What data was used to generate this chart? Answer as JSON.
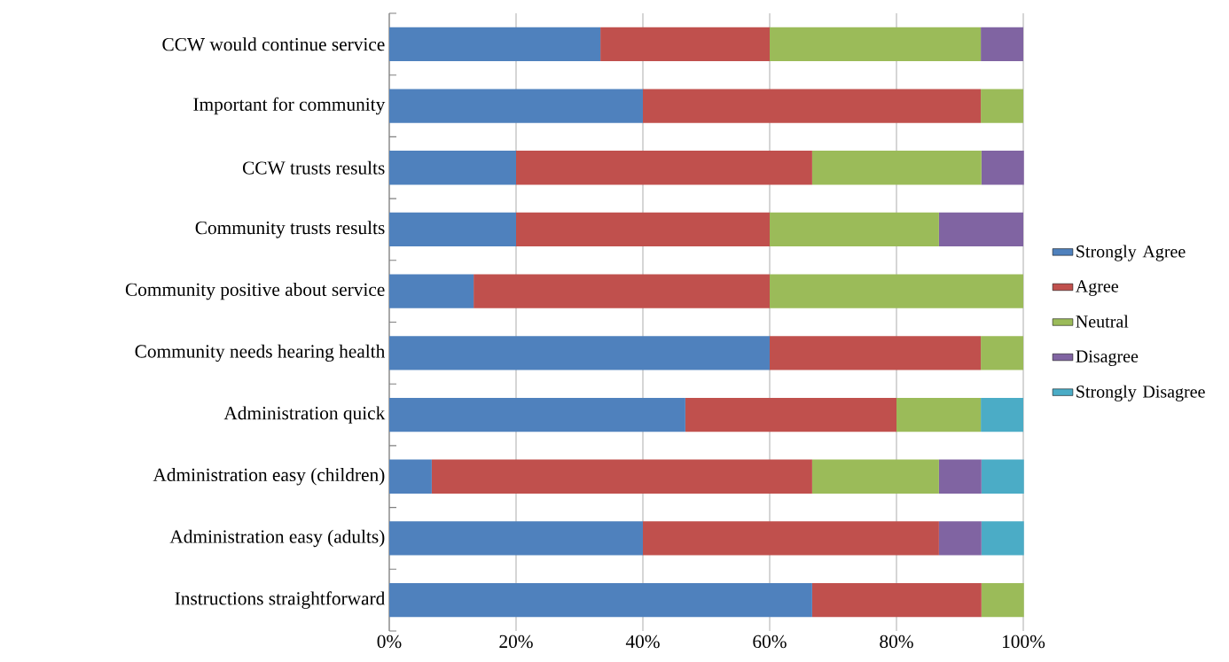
{
  "chart_data": {
    "type": "bar",
    "orientation": "horizontal",
    "stacked": true,
    "categories": [
      "CCW would continue service",
      "Important for community",
      "CCW trusts results",
      "Community trusts results",
      "Community positive about service",
      "Community needs hearing health",
      "Administration quick",
      "Administration easy (children)",
      "Administration easy (adults)",
      "Instructions straightforward"
    ],
    "series": [
      {
        "name": "Strongly Agree",
        "color": "#4f81bd",
        "values": [
          33.3,
          40,
          20,
          20,
          13.3,
          60,
          46.7,
          6.7,
          40,
          66.7
        ]
      },
      {
        "name": "Agree",
        "color": "#c0504d",
        "values": [
          26.7,
          53.3,
          46.7,
          40,
          46.7,
          33.3,
          33.3,
          60,
          46.7,
          26.7
        ]
      },
      {
        "name": "Neutral",
        "color": "#9bbb59",
        "values": [
          33.3,
          6.7,
          26.7,
          26.7,
          40,
          6.7,
          13.3,
          20,
          null,
          6.7
        ]
      },
      {
        "name": "Disagree",
        "color": "#8064a2",
        "values": [
          6.7,
          null,
          6.7,
          13.3,
          null,
          null,
          null,
          6.7,
          6.7,
          null
        ]
      },
      {
        "name": "Strongly Disagree",
        "color": "#4bacc6",
        "values": [
          null,
          null,
          null,
          null,
          null,
          null,
          6.7,
          6.7,
          6.7,
          null
        ]
      }
    ],
    "xlim": [
      0,
      100
    ],
    "xticks": [
      {
        "value": 0,
        "label": "0%"
      },
      {
        "value": 20,
        "label": "20%"
      },
      {
        "value": 40,
        "label": "40%"
      },
      {
        "value": 60,
        "label": "60%"
      },
      {
        "value": 80,
        "label": "80%"
      },
      {
        "value": 100,
        "label": "100%"
      }
    ],
    "grid": "x",
    "legend": "right"
  }
}
